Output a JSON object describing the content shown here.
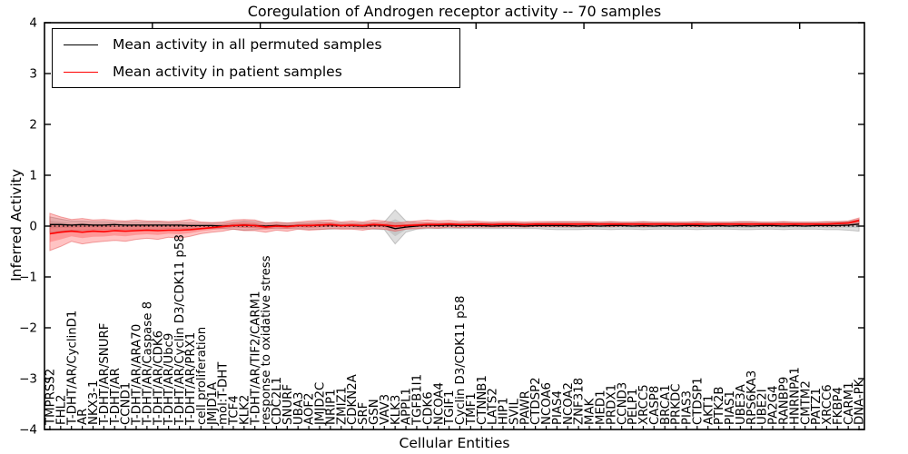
{
  "figure": {
    "title": "Coregulation of Androgen receptor activity -- 70 samples",
    "background": "#ffffff"
  },
  "legend": {
    "position": "upper left",
    "items": [
      {
        "label": "Mean activity in all permuted samples",
        "color": "#000000"
      },
      {
        "label": "Mean activity in patient samples",
        "color": "#ff0000"
      }
    ]
  },
  "chart_data": {
    "type": "line",
    "title": "Coregulation of Androgen receptor activity -- 70 samples",
    "xlabel": "Cellular Entities",
    "ylabel": "Inferred Activity",
    "ylim": [
      -4,
      4
    ],
    "yticks": [
      4,
      3,
      2,
      1,
      0,
      -1,
      -2,
      -3,
      -4
    ],
    "xticks_top_positions": [
      10,
      20,
      30,
      40,
      50,
      60,
      70
    ],
    "grid": false,
    "zero_line": {
      "style": "dotted",
      "color": "#000000"
    },
    "legend_position": "upper left",
    "categories": [
      "TMPRSS2",
      "FHL2",
      "T-DHT/AR/CyclinD1",
      "AR",
      "NKX3-1",
      "T-DHT/AR/SNURF",
      "T-DHT/AR",
      "CCND1",
      "T-DHT/AR/ARA70",
      "T-DHT/AR/Caspase 8",
      "T-DHT/AR/CDK6",
      "T-DHT/AR/Ubc9",
      "T-DHT/AR/Cyclin D3/CDK11 p58",
      "T-DHT/AR/PRX1",
      "cell proliferation",
      "JMJD1A",
      "mol:T-DHT",
      "TCF4",
      "KLK2",
      "T-DHT/AR/TIF2/CARM1",
      "response to oxidative stress",
      "CDC2L1",
      "SNURF",
      "UBA3",
      "AOF2",
      "JMJD2C",
      "NRIP1",
      "ZMIZ1",
      "CDKN2A",
      "SRF",
      "GSN",
      "VAV3",
      "KLK3",
      "APPL1",
      "TGFB1I1",
      "CDK6",
      "NCOA4",
      "TGIF1",
      "Cyclin D3/CDK11 p58",
      "TMF1",
      "CTNNB1",
      "LATS2",
      "HIP1",
      "SVIL",
      "PAWR",
      "CTDSP2",
      "NCOA6",
      "PIAS4",
      "NCOA2",
      "ZNF318",
      "MAK",
      "MED1",
      "PRDX1",
      "CCND3",
      "PELP1",
      "XRCC5",
      "CASP8",
      "BRCA1",
      "PRKDC",
      "PIAS3",
      "CTDSP1",
      "AKT1",
      "PTK2B",
      "PIAS1",
      "UBE3A",
      "RPS6KA3",
      "UBE2I",
      "PA2G4",
      "RANBP9",
      "HNRNPA1",
      "CMTM2",
      "PATZ1",
      "XRCC6",
      "FKBP4",
      "CARM1",
      "DNA-PK"
    ],
    "series": [
      {
        "name": "Mean activity in all permuted samples",
        "color": "#000000",
        "values": [
          0.03,
          0.03,
          0.02,
          0.03,
          0.02,
          0.02,
          0.03,
          0.02,
          0.02,
          0.02,
          0.02,
          0.02,
          0.02,
          0.01,
          0.01,
          0.01,
          0.0,
          0.01,
          0.02,
          0.01,
          0.0,
          0.01,
          0.0,
          0.01,
          0.01,
          0.02,
          0.02,
          0.01,
          0.01,
          0.0,
          0.02,
          0.01,
          -0.05,
          -0.02,
          0.0,
          0.02,
          0.01,
          0.02,
          0.01,
          0.01,
          0.01,
          0.0,
          0.01,
          0.01,
          0.0,
          0.01,
          0.01,
          0.01,
          0.01,
          0.0,
          0.01,
          0.0,
          0.01,
          0.01,
          0.0,
          0.01,
          0.0,
          0.01,
          0.0,
          0.01,
          0.01,
          0.0,
          0.01,
          0.0,
          0.01,
          0.0,
          0.01,
          0.01,
          0.0,
          0.01,
          0.0,
          0.01,
          0.01,
          0.01,
          0.02,
          0.04
        ]
      },
      {
        "name": "Mean activity in patient samples",
        "color": "#ff0000",
        "values": [
          -0.15,
          -0.12,
          -0.1,
          -0.12,
          -0.1,
          -0.11,
          -0.09,
          -0.1,
          -0.09,
          -0.08,
          -0.09,
          -0.08,
          -0.08,
          -0.07,
          -0.05,
          -0.03,
          -0.01,
          0.01,
          0.02,
          0.01,
          -0.02,
          0.0,
          -0.01,
          0.01,
          0.01,
          0.02,
          0.03,
          0.01,
          0.02,
          0.01,
          0.03,
          0.02,
          0.0,
          0.01,
          0.02,
          0.03,
          0.03,
          0.04,
          0.03,
          0.03,
          0.04,
          0.03,
          0.04,
          0.04,
          0.03,
          0.04,
          0.04,
          0.04,
          0.04,
          0.04,
          0.04,
          0.04,
          0.04,
          0.04,
          0.04,
          0.04,
          0.04,
          0.04,
          0.04,
          0.04,
          0.04,
          0.04,
          0.04,
          0.04,
          0.04,
          0.04,
          0.04,
          0.04,
          0.04,
          0.04,
          0.04,
          0.04,
          0.04,
          0.05,
          0.06,
          0.11
        ]
      }
    ],
    "bands": [
      {
        "name": "permuted samples range",
        "color": "#999999",
        "edge": "#8a8a8a",
        "fill_opacity": 0.32,
        "mean_series": 0,
        "hi": [
          0.18,
          0.14,
          0.1,
          0.1,
          0.09,
          0.09,
          0.08,
          0.08,
          0.08,
          0.08,
          0.08,
          0.07,
          0.07,
          0.07,
          0.06,
          0.06,
          0.06,
          0.08,
          0.1,
          0.09,
          0.06,
          0.06,
          0.06,
          0.06,
          0.07,
          0.08,
          0.07,
          0.06,
          0.06,
          0.06,
          0.07,
          0.08,
          0.32,
          0.1,
          0.07,
          0.06,
          0.06,
          0.06,
          0.06,
          0.06,
          0.06,
          0.06,
          0.06,
          0.06,
          0.06,
          0.06,
          0.07,
          0.08,
          0.08,
          0.08,
          0.07,
          0.07,
          0.08,
          0.07,
          0.07,
          0.08,
          0.07,
          0.07,
          0.07,
          0.07,
          0.08,
          0.07,
          0.07,
          0.07,
          0.08,
          0.08,
          0.07,
          0.07,
          0.08,
          0.07,
          0.07,
          0.07,
          0.08,
          0.08,
          0.09,
          0.13
        ],
        "lo": [
          -0.12,
          -0.1,
          -0.08,
          -0.08,
          -0.07,
          -0.07,
          -0.06,
          -0.06,
          -0.06,
          -0.06,
          -0.06,
          -0.05,
          -0.05,
          -0.05,
          -0.05,
          -0.05,
          -0.05,
          -0.06,
          -0.08,
          -0.07,
          -0.05,
          -0.05,
          -0.05,
          -0.05,
          -0.06,
          -0.06,
          -0.06,
          -0.05,
          -0.05,
          -0.05,
          -0.06,
          -0.07,
          -0.35,
          -0.12,
          -0.06,
          -0.05,
          -0.05,
          -0.05,
          -0.05,
          -0.05,
          -0.05,
          -0.05,
          -0.05,
          -0.05,
          -0.05,
          -0.05,
          -0.06,
          -0.07,
          -0.07,
          -0.07,
          -0.06,
          -0.06,
          -0.07,
          -0.06,
          -0.06,
          -0.07,
          -0.06,
          -0.06,
          -0.06,
          -0.06,
          -0.07,
          -0.06,
          -0.06,
          -0.06,
          -0.07,
          -0.07,
          -0.06,
          -0.06,
          -0.07,
          -0.06,
          -0.06,
          -0.06,
          -0.07,
          -0.07,
          -0.08,
          -0.1
        ]
      },
      {
        "name": "patient samples range",
        "color": "#ff2020",
        "edge": "#e04040",
        "fill_opacity": 0.27,
        "mean_series": 1,
        "hi": [
          0.25,
          0.18,
          0.13,
          0.15,
          0.12,
          0.13,
          0.11,
          0.1,
          0.12,
          0.1,
          0.1,
          0.09,
          0.1,
          0.13,
          0.08,
          0.07,
          0.08,
          0.12,
          0.13,
          0.12,
          0.06,
          0.08,
          0.06,
          0.08,
          0.1,
          0.11,
          0.12,
          0.08,
          0.1,
          0.08,
          0.12,
          0.1,
          0.06,
          0.08,
          0.1,
          0.12,
          0.1,
          0.11,
          0.09,
          0.1,
          0.09,
          0.08,
          0.09,
          0.09,
          0.08,
          0.09,
          0.09,
          0.09,
          0.09,
          0.09,
          0.09,
          0.08,
          0.09,
          0.08,
          0.08,
          0.09,
          0.08,
          0.08,
          0.08,
          0.08,
          0.09,
          0.08,
          0.08,
          0.08,
          0.09,
          0.09,
          0.08,
          0.08,
          0.09,
          0.08,
          0.08,
          0.08,
          0.09,
          0.09,
          0.1,
          0.16
        ],
        "lo": [
          -0.48,
          -0.4,
          -0.3,
          -0.35,
          -0.32,
          -0.3,
          -0.28,
          -0.3,
          -0.26,
          -0.24,
          -0.26,
          -0.22,
          -0.24,
          -0.2,
          -0.15,
          -0.12,
          -0.1,
          -0.06,
          -0.09,
          -0.09,
          -0.12,
          -0.08,
          -0.1,
          -0.06,
          -0.08,
          -0.07,
          -0.05,
          -0.06,
          -0.06,
          -0.08,
          -0.05,
          -0.06,
          -0.1,
          -0.06,
          -0.05,
          -0.03,
          -0.04,
          -0.02,
          -0.03,
          -0.02,
          -0.02,
          -0.02,
          -0.02,
          -0.01,
          -0.02,
          -0.01,
          -0.01,
          -0.01,
          -0.01,
          -0.01,
          -0.01,
          0.0,
          -0.01,
          0.0,
          0.0,
          -0.01,
          0.0,
          0.0,
          0.0,
          0.0,
          -0.01,
          0.0,
          0.0,
          0.0,
          0.0,
          0.0,
          0.0,
          0.0,
          0.0,
          0.0,
          0.0,
          0.0,
          0.0,
          0.0,
          0.01,
          0.03
        ]
      }
    ]
  }
}
